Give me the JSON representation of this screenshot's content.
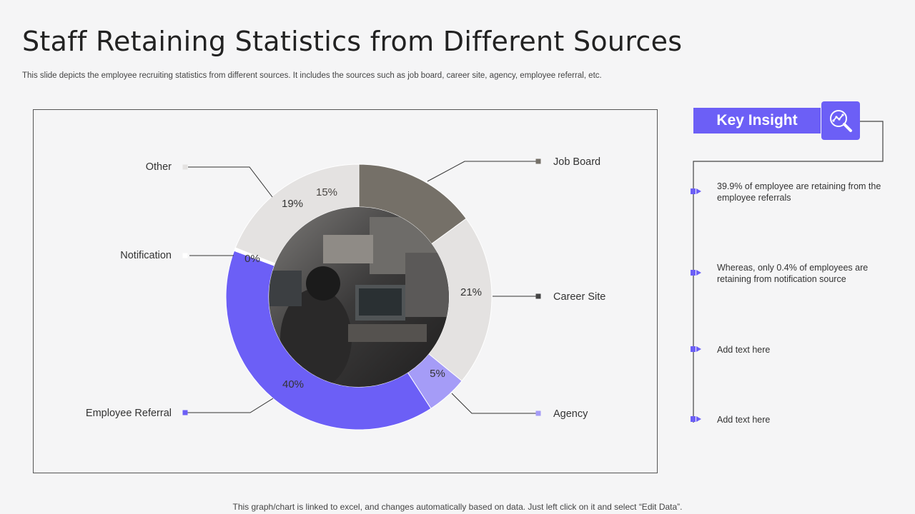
{
  "header": {
    "title": "Staff Retaining Statistics from Different Sources",
    "subtitle": "This slide depicts the employee recruiting statistics from different sources. It includes the sources such as job board, career site, agency, employee referral, etc."
  },
  "chart_data": {
    "type": "pie",
    "style": "donut",
    "slices": [
      {
        "label": "Job Board",
        "value": 15,
        "display": "15%",
        "color": "#757068"
      },
      {
        "label": "Career Site",
        "value": 21,
        "display": "21%",
        "color": "#e4e2e1"
      },
      {
        "label": "Agency",
        "value": 5,
        "display": "5%",
        "color": "#a59cf7"
      },
      {
        "label": "Employee Referral",
        "value": 39.9,
        "display": "40%",
        "color": "#6c5ff6"
      },
      {
        "label": "Notification",
        "value": 0.4,
        "display": "0%",
        "color": "#ffffff"
      },
      {
        "label": "Other",
        "value": 19,
        "display": "19%",
        "color": "#e4e2e1"
      }
    ]
  },
  "insight": {
    "title": "Key Insight",
    "icon": "magnifier-chart-icon",
    "items": [
      "39.9% of employee are retaining from the employee referrals",
      "Whereas, only 0.4% of  employees are retaining from notification source",
      "Add text here",
      "Add text here"
    ]
  },
  "footer": {
    "note": "This graph/chart is linked to excel, and changes automatically based on data. Just left click on it and select “Edit Data”."
  },
  "colors": {
    "accent": "#6c5ff6",
    "accent_light": "#a59cf7",
    "dark_gray": "#757068",
    "light_gray": "#e4e2e1"
  }
}
